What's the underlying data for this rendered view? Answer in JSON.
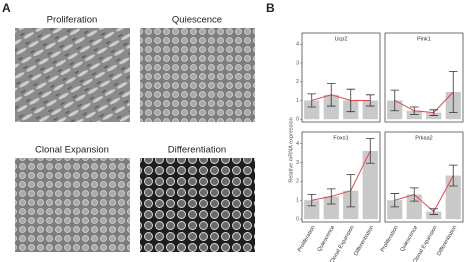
{
  "figure": {
    "panel_a_label": "A",
    "panel_b_label": "B",
    "ylabel": "Relative mRNA expression"
  },
  "images": [
    "Proliferation",
    "Quiescence",
    "Clonal Expansion",
    "Differentiation"
  ],
  "chart_data": [
    {
      "type": "bar",
      "title": "Ucp2",
      "categories": [
        null,
        null,
        null,
        null
      ],
      "values": [
        1.0,
        1.3,
        1.0,
        1.0
      ],
      "errors": [
        0.35,
        0.6,
        0.6,
        0.3
      ],
      "color": "#c9c9c9",
      "line_color": "#e0474c",
      "ylim": [
        -0.15,
        4.6
      ],
      "yticks": [
        0,
        1,
        2,
        3,
        4
      ]
    },
    {
      "type": "bar",
      "title": "Pink1",
      "categories": [
        null,
        null,
        null,
        null
      ],
      "values": [
        1.0,
        0.45,
        0.35,
        1.45
      ],
      "errors": [
        0.55,
        0.2,
        0.15,
        1.1
      ],
      "color": "#c9c9c9",
      "line_color": "#e0474c",
      "ylim": [
        -0.15,
        4.6
      ]
    },
    {
      "type": "bar",
      "title": "Foxo1",
      "categories": [
        "Proliferation",
        "Quiescence",
        "Clonal Expansion",
        "Differentiation"
      ],
      "values": [
        1.0,
        1.2,
        1.5,
        3.6
      ],
      "errors": [
        0.3,
        0.4,
        0.85,
        0.65
      ],
      "color": "#c9c9c9",
      "line_color": "#e0474c",
      "ylim": [
        -0.15,
        4.6
      ],
      "yticks": [
        0,
        1,
        2,
        3,
        4
      ]
    },
    {
      "type": "bar",
      "title": "Prkaa2",
      "categories": [
        "Proliferation",
        "Quiescence",
        "Clonal Expansion",
        "Differentiation"
      ],
      "values": [
        1.0,
        1.3,
        0.4,
        2.3
      ],
      "errors": [
        0.35,
        0.35,
        0.15,
        0.55
      ],
      "color": "#c9c9c9",
      "line_color": "#e0474c",
      "ylim": [
        -0.15,
        4.6
      ]
    }
  ]
}
